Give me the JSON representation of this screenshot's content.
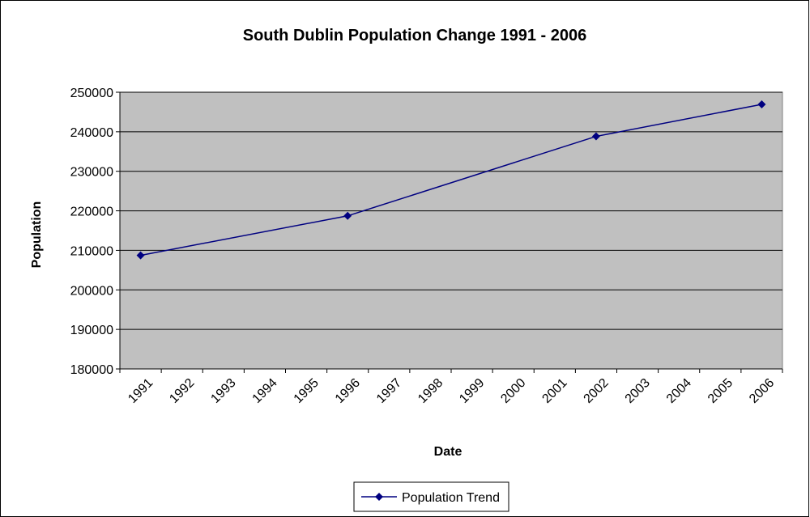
{
  "chart_data": {
    "type": "line",
    "title": "South Dublin Population Change 1991 - 2006",
    "x_label": "Date",
    "y_label": "Population",
    "x": [
      1991,
      1996,
      2002,
      2006
    ],
    "series": [
      {
        "name": "Population Trend",
        "color": "#000080",
        "values": [
          208739,
          218728,
          238835,
          246935
        ]
      }
    ],
    "xlim": [
      1990.5,
      2006.5
    ],
    "xticks": [
      1991,
      1992,
      1993,
      1994,
      1995,
      1996,
      1997,
      1998,
      1999,
      2000,
      2001,
      2002,
      2003,
      2004,
      2005,
      2006
    ],
    "ylim": [
      180000,
      250000
    ],
    "yticks": [
      180000,
      190000,
      200000,
      210000,
      220000,
      230000,
      240000,
      250000
    ],
    "grid": true,
    "legend": "bottom"
  }
}
